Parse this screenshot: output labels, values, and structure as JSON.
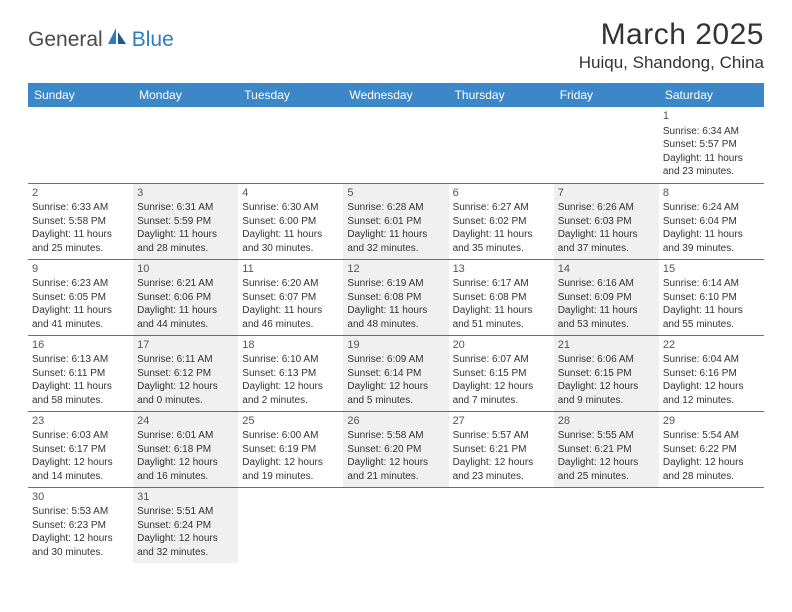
{
  "logo": {
    "general": "General",
    "blue": "Blue"
  },
  "title": "March 2025",
  "location": "Huiqu, Shandong, China",
  "colors": {
    "header_bg": "#3b87c8",
    "border": "#2f7bbf",
    "alt_row": "#f0f0f0"
  },
  "weekdays": [
    "Sunday",
    "Monday",
    "Tuesday",
    "Wednesday",
    "Thursday",
    "Friday",
    "Saturday"
  ],
  "weeks": [
    [
      null,
      null,
      null,
      null,
      null,
      null,
      {
        "d": "1",
        "sr": "Sunrise: 6:34 AM",
        "ss": "Sunset: 5:57 PM",
        "dl": "Daylight: 11 hours and 23 minutes."
      }
    ],
    [
      {
        "d": "2",
        "sr": "Sunrise: 6:33 AM",
        "ss": "Sunset: 5:58 PM",
        "dl": "Daylight: 11 hours and 25 minutes."
      },
      {
        "d": "3",
        "sr": "Sunrise: 6:31 AM",
        "ss": "Sunset: 5:59 PM",
        "dl": "Daylight: 11 hours and 28 minutes."
      },
      {
        "d": "4",
        "sr": "Sunrise: 6:30 AM",
        "ss": "Sunset: 6:00 PM",
        "dl": "Daylight: 11 hours and 30 minutes."
      },
      {
        "d": "5",
        "sr": "Sunrise: 6:28 AM",
        "ss": "Sunset: 6:01 PM",
        "dl": "Daylight: 11 hours and 32 minutes."
      },
      {
        "d": "6",
        "sr": "Sunrise: 6:27 AM",
        "ss": "Sunset: 6:02 PM",
        "dl": "Daylight: 11 hours and 35 minutes."
      },
      {
        "d": "7",
        "sr": "Sunrise: 6:26 AM",
        "ss": "Sunset: 6:03 PM",
        "dl": "Daylight: 11 hours and 37 minutes."
      },
      {
        "d": "8",
        "sr": "Sunrise: 6:24 AM",
        "ss": "Sunset: 6:04 PM",
        "dl": "Daylight: 11 hours and 39 minutes."
      }
    ],
    [
      {
        "d": "9",
        "sr": "Sunrise: 6:23 AM",
        "ss": "Sunset: 6:05 PM",
        "dl": "Daylight: 11 hours and 41 minutes."
      },
      {
        "d": "10",
        "sr": "Sunrise: 6:21 AM",
        "ss": "Sunset: 6:06 PM",
        "dl": "Daylight: 11 hours and 44 minutes."
      },
      {
        "d": "11",
        "sr": "Sunrise: 6:20 AM",
        "ss": "Sunset: 6:07 PM",
        "dl": "Daylight: 11 hours and 46 minutes."
      },
      {
        "d": "12",
        "sr": "Sunrise: 6:19 AM",
        "ss": "Sunset: 6:08 PM",
        "dl": "Daylight: 11 hours and 48 minutes."
      },
      {
        "d": "13",
        "sr": "Sunrise: 6:17 AM",
        "ss": "Sunset: 6:08 PM",
        "dl": "Daylight: 11 hours and 51 minutes."
      },
      {
        "d": "14",
        "sr": "Sunrise: 6:16 AM",
        "ss": "Sunset: 6:09 PM",
        "dl": "Daylight: 11 hours and 53 minutes."
      },
      {
        "d": "15",
        "sr": "Sunrise: 6:14 AM",
        "ss": "Sunset: 6:10 PM",
        "dl": "Daylight: 11 hours and 55 minutes."
      }
    ],
    [
      {
        "d": "16",
        "sr": "Sunrise: 6:13 AM",
        "ss": "Sunset: 6:11 PM",
        "dl": "Daylight: 11 hours and 58 minutes."
      },
      {
        "d": "17",
        "sr": "Sunrise: 6:11 AM",
        "ss": "Sunset: 6:12 PM",
        "dl": "Daylight: 12 hours and 0 minutes."
      },
      {
        "d": "18",
        "sr": "Sunrise: 6:10 AM",
        "ss": "Sunset: 6:13 PM",
        "dl": "Daylight: 12 hours and 2 minutes."
      },
      {
        "d": "19",
        "sr": "Sunrise: 6:09 AM",
        "ss": "Sunset: 6:14 PM",
        "dl": "Daylight: 12 hours and 5 minutes."
      },
      {
        "d": "20",
        "sr": "Sunrise: 6:07 AM",
        "ss": "Sunset: 6:15 PM",
        "dl": "Daylight: 12 hours and 7 minutes."
      },
      {
        "d": "21",
        "sr": "Sunrise: 6:06 AM",
        "ss": "Sunset: 6:15 PM",
        "dl": "Daylight: 12 hours and 9 minutes."
      },
      {
        "d": "22",
        "sr": "Sunrise: 6:04 AM",
        "ss": "Sunset: 6:16 PM",
        "dl": "Daylight: 12 hours and 12 minutes."
      }
    ],
    [
      {
        "d": "23",
        "sr": "Sunrise: 6:03 AM",
        "ss": "Sunset: 6:17 PM",
        "dl": "Daylight: 12 hours and 14 minutes."
      },
      {
        "d": "24",
        "sr": "Sunrise: 6:01 AM",
        "ss": "Sunset: 6:18 PM",
        "dl": "Daylight: 12 hours and 16 minutes."
      },
      {
        "d": "25",
        "sr": "Sunrise: 6:00 AM",
        "ss": "Sunset: 6:19 PM",
        "dl": "Daylight: 12 hours and 19 minutes."
      },
      {
        "d": "26",
        "sr": "Sunrise: 5:58 AM",
        "ss": "Sunset: 6:20 PM",
        "dl": "Daylight: 12 hours and 21 minutes."
      },
      {
        "d": "27",
        "sr": "Sunrise: 5:57 AM",
        "ss": "Sunset: 6:21 PM",
        "dl": "Daylight: 12 hours and 23 minutes."
      },
      {
        "d": "28",
        "sr": "Sunrise: 5:55 AM",
        "ss": "Sunset: 6:21 PM",
        "dl": "Daylight: 12 hours and 25 minutes."
      },
      {
        "d": "29",
        "sr": "Sunrise: 5:54 AM",
        "ss": "Sunset: 6:22 PM",
        "dl": "Daylight: 12 hours and 28 minutes."
      }
    ],
    [
      {
        "d": "30",
        "sr": "Sunrise: 5:53 AM",
        "ss": "Sunset: 6:23 PM",
        "dl": "Daylight: 12 hours and 30 minutes."
      },
      {
        "d": "31",
        "sr": "Sunrise: 5:51 AM",
        "ss": "Sunset: 6:24 PM",
        "dl": "Daylight: 12 hours and 32 minutes."
      },
      null,
      null,
      null,
      null,
      null
    ]
  ]
}
